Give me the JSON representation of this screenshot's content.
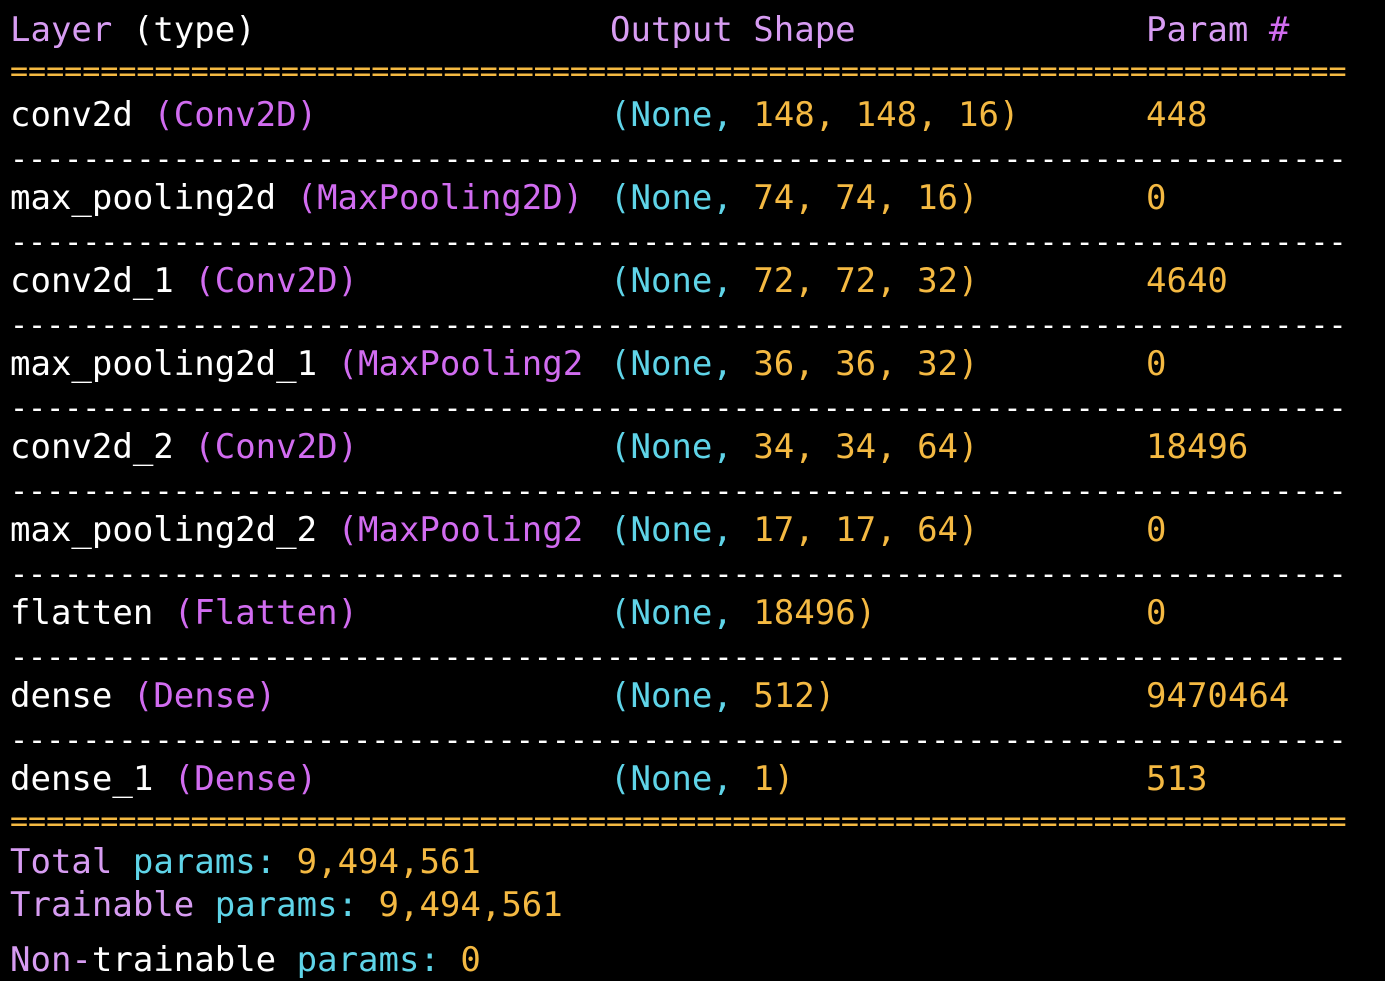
{
  "header": {
    "layer_word": "Layer",
    "layer_type": "(type)",
    "output_shape": "Output Shape",
    "param_word": "Param",
    "param_hash": "#"
  },
  "rules": {
    "double": "==========================================================================",
    "single": "--------------------------------------------------------------------------"
  },
  "layers": [
    {
      "name": "conv2d",
      "type": "(Conv2D)",
      "shape_open": "(",
      "shape_none": "None,",
      "shape_dims": "148, 148, 16)",
      "params": "448"
    },
    {
      "name": "max_pooling2d",
      "type": "(MaxPooling2D)",
      "shape_open": "(",
      "shape_none": "None,",
      "shape_dims": "74, 74, 16)",
      "params": "0"
    },
    {
      "name": "conv2d_1",
      "type": "(Conv2D)",
      "shape_open": "(",
      "shape_none": "None,",
      "shape_dims": "72, 72, 32)",
      "params": "4640"
    },
    {
      "name": "max_pooling2d_1",
      "type": "(MaxPooling2",
      "shape_open": "(",
      "shape_none": "None,",
      "shape_dims": "36, 36, 32)",
      "params": "0"
    },
    {
      "name": "conv2d_2",
      "type": "(Conv2D)",
      "shape_open": "(",
      "shape_none": "None,",
      "shape_dims": "34, 34, 64)",
      "params": "18496"
    },
    {
      "name": "max_pooling2d_2",
      "type": "(MaxPooling2",
      "shape_open": "(",
      "shape_none": "None,",
      "shape_dims": "17, 17, 64)",
      "params": "0"
    },
    {
      "name": "flatten",
      "type": "(Flatten)",
      "shape_open": "(",
      "shape_none": "None,",
      "shape_dims": "18496)",
      "params": "0"
    },
    {
      "name": "dense",
      "type": "(Dense)",
      "shape_open": "(",
      "shape_none": "None,",
      "shape_dims": "512)",
      "params": "9470464"
    },
    {
      "name": "dense_1",
      "type": "(Dense)",
      "shape_open": "(",
      "shape_none": "None,",
      "shape_dims": "1)",
      "params": "513"
    }
  ],
  "summary": {
    "total": {
      "w1": "Total",
      "w2": "params:",
      "value": "9,494,561"
    },
    "trainable": {
      "w1": "Trainable",
      "w2": "params:",
      "value": "9,494,561"
    },
    "non_trainable": {
      "w1a": "Non",
      "w1b": "-",
      "w1c": "trainable",
      "w2": "params:",
      "value": "0"
    }
  },
  "colors": {
    "background": "#000000",
    "text": "#ffffff",
    "header": "#d79cf2",
    "number": "#f4b942",
    "none_keyword": "#5fd4e8",
    "class_name": "#d16cf0"
  }
}
